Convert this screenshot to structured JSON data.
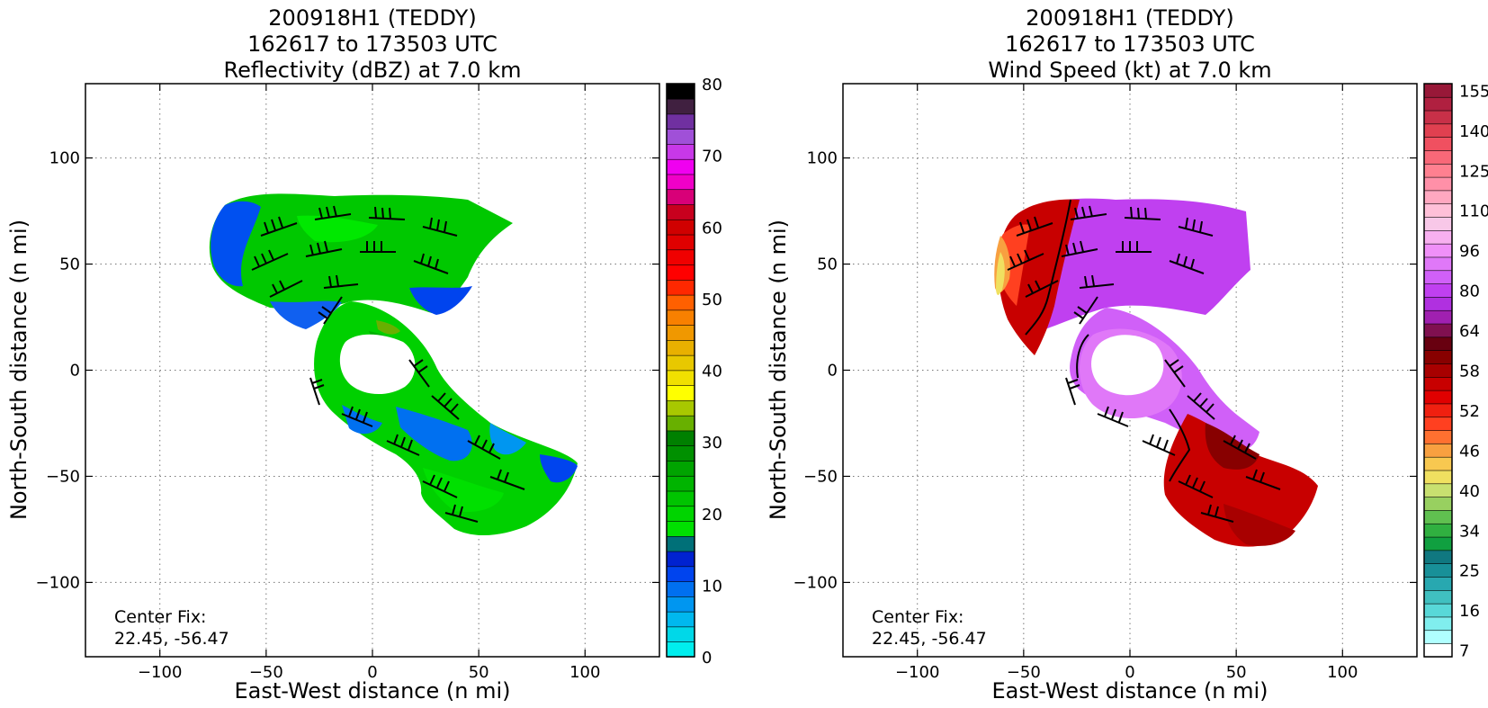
{
  "chart_data": [
    {
      "type": "heatmap",
      "field": "reflectivity",
      "title_lines": [
        "200918H1 (TEDDY)",
        "162617 to 173503 UTC",
        "Reflectivity (dBZ) at 7.0 km"
      ],
      "xlabel": "East-West distance (n mi)",
      "ylabel": "North-South distance (n mi)",
      "xlim": [
        -135,
        135
      ],
      "ylim": [
        -135,
        135
      ],
      "xticks": [
        -100,
        -50,
        0,
        50,
        100
      ],
      "yticks": [
        -100,
        -50,
        0,
        50,
        100
      ],
      "grid": true,
      "annotation": [
        "Center Fix:",
        "22.45, -56.47"
      ],
      "colorbar": {
        "min": 0,
        "max": 80,
        "ticks": [
          "0",
          "10",
          "20",
          "30",
          "40",
          "50",
          "60",
          "70",
          "80"
        ],
        "colors": [
          "#00eeee",
          "#00d8e8",
          "#00b8ee",
          "#0096f0",
          "#0070f0",
          "#0044ee",
          "#0022d0",
          "#007078",
          "#00e000",
          "#00d400",
          "#00c400",
          "#00b400",
          "#00a400",
          "#009000",
          "#008000",
          "#68b000",
          "#a8c800",
          "#ffff00",
          "#f0e000",
          "#e8c800",
          "#e8b000",
          "#f09800",
          "#f88000",
          "#ff6000",
          "#ff2800",
          "#ff0000",
          "#f00000",
          "#e00000",
          "#d00000",
          "#c8001e",
          "#d80078",
          "#f000c8",
          "#f000f0",
          "#c838e8",
          "#a050d8",
          "#7030a0",
          "#402040",
          "#000000"
        ]
      }
    },
    {
      "type": "heatmap",
      "field": "wind_speed",
      "title_lines": [
        "200918H1 (TEDDY)",
        "162617 to 173503 UTC",
        "Wind Speed (kt) at 7.0 km"
      ],
      "xlabel": "East-West distance (n mi)",
      "ylabel": "North-South distance (n mi)",
      "xlim": [
        -135,
        135
      ],
      "ylim": [
        -135,
        135
      ],
      "xticks": [
        -100,
        -50,
        0,
        50,
        100
      ],
      "yticks": [
        -100,
        -50,
        0,
        50,
        100
      ],
      "grid": true,
      "annotation": [
        "Center Fix:",
        "22.45, -56.47"
      ],
      "colorbar": {
        "ticks": [
          "7",
          "16",
          "25",
          "34",
          "40",
          "46",
          "52",
          "58",
          "64",
          "80",
          "96",
          "110",
          "125",
          "140",
          "155"
        ],
        "colors": [
          "#ffffff",
          "#b0ffff",
          "#80eeee",
          "#58d8d8",
          "#40c0c0",
          "#28a8b0",
          "#189098",
          "#107880",
          "#10a040",
          "#30b040",
          "#60c050",
          "#98d060",
          "#c8e070",
          "#f0e060",
          "#f8c850",
          "#f8a040",
          "#ff7030",
          "#ff4020",
          "#f02010",
          "#e00000",
          "#c80000",
          "#a80000",
          "#880000",
          "#680010",
          "#801050",
          "#a020b0",
          "#b030e0",
          "#c040f0",
          "#d060f8",
          "#e078f8",
          "#f090f8",
          "#f8b0f0",
          "#f8c8e8",
          "#ffc0d8",
          "#ffa8c0",
          "#ff90a8",
          "#ff8090",
          "#f86878",
          "#f05060",
          "#e04050",
          "#c83048",
          "#b02040",
          "#981838"
        ]
      }
    }
  ]
}
